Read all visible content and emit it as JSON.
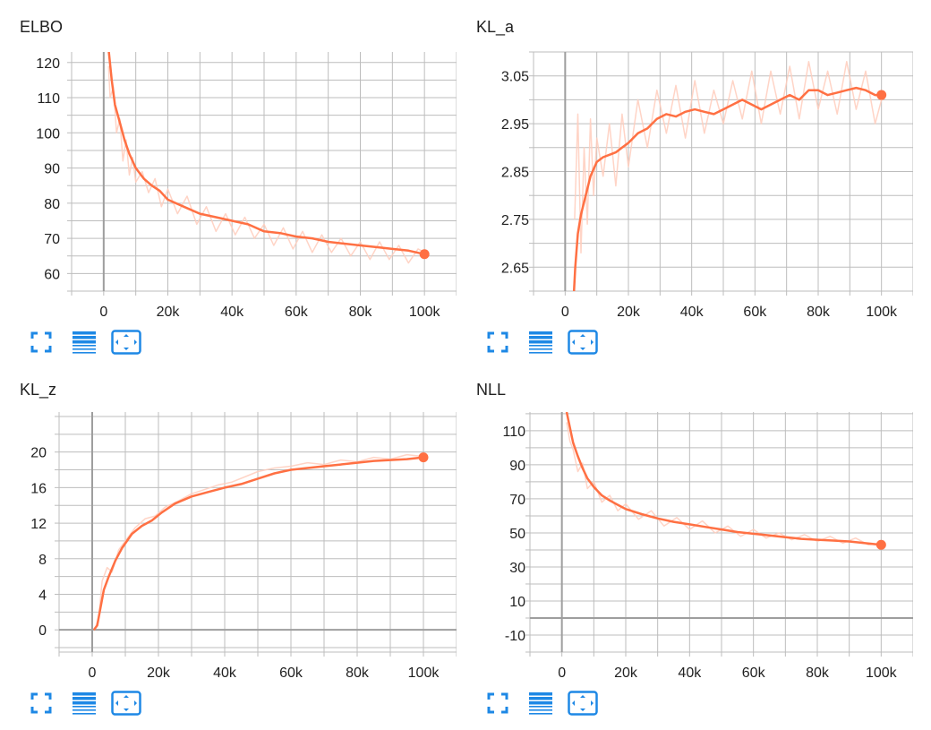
{
  "colors": {
    "smoothed": "#ff7043",
    "raw": "#ffccbc",
    "grid": "#bdbdbd",
    "axis_zero": "#9e9e9e",
    "toolbar_icon": "#1e88e5"
  },
  "toolbar": {
    "icons": [
      "fullscreen-icon",
      "data-table-icon",
      "fit-domain-icon"
    ]
  },
  "chart_data": [
    {
      "type": "line",
      "title": "ELBO",
      "xlabel": "",
      "ylabel": "",
      "xlim": [
        -10000,
        110000
      ],
      "ylim": [
        55,
        123
      ],
      "xticks": [
        0,
        20000,
        40000,
        60000,
        80000,
        100000
      ],
      "xtick_labels": [
        "0",
        "20k",
        "40k",
        "60k",
        "80k",
        "100k"
      ],
      "yticks": [
        60,
        70,
        80,
        90,
        100,
        110,
        120
      ],
      "ytick_labels": [
        "60",
        "70",
        "80",
        "90",
        "100",
        "110",
        "120"
      ],
      "grid": true,
      "series": [
        {
          "role": "smoothed",
          "x": [
            1500,
            2500,
            3500,
            5000,
            6500,
            8000,
            10000,
            12500,
            15000,
            17500,
            20000,
            25000,
            30000,
            35000,
            40000,
            45000,
            50000,
            55000,
            60000,
            65000,
            70000,
            75000,
            80000,
            85000,
            90000,
            95000,
            100000
          ],
          "y": [
            124,
            115,
            108,
            103,
            98,
            94,
            90,
            87,
            85,
            83.5,
            81,
            79,
            77,
            76,
            75,
            74,
            72,
            71.5,
            70.5,
            70,
            69,
            68.5,
            68,
            67.5,
            67,
            66.5,
            65.5
          ]
        },
        {
          "role": "raw",
          "x": [
            1500,
            2000,
            3000,
            4000,
            5000,
            6000,
            7000,
            8000,
            9000,
            10000,
            12000,
            14000,
            16000,
            18000,
            20000,
            23000,
            26000,
            29000,
            32000,
            35000,
            38000,
            41000,
            44000,
            47000,
            50000,
            53000,
            56000,
            59000,
            62000,
            65000,
            68000,
            71000,
            74000,
            77000,
            80000,
            83000,
            86000,
            89000,
            92000,
            95000,
            98000,
            100000
          ],
          "y": [
            119,
            110,
            113,
            100,
            104,
            92,
            98,
            88,
            93,
            86,
            89,
            83,
            87,
            79,
            84,
            77,
            82,
            74,
            79,
            72,
            77,
            71,
            76,
            70,
            74,
            68,
            73,
            67,
            72,
            66,
            71,
            66,
            70,
            65,
            69,
            64,
            69,
            64,
            68,
            63,
            67,
            66
          ]
        }
      ]
    },
    {
      "type": "line",
      "title": "KL_a",
      "xlabel": "",
      "ylabel": "",
      "xlim": [
        -10000,
        110000
      ],
      "ylim": [
        2.6,
        3.1
      ],
      "xticks": [
        0,
        20000,
        40000,
        60000,
        80000,
        100000
      ],
      "xtick_labels": [
        "0",
        "20k",
        "40k",
        "60k",
        "80k",
        "100k"
      ],
      "yticks": [
        2.65,
        2.75,
        2.85,
        2.95,
        3.05
      ],
      "ytick_labels": [
        "2.65",
        "2.75",
        "2.85",
        "2.95",
        "3.05"
      ],
      "grid": true,
      "series": [
        {
          "role": "smoothed",
          "x": [
            2800,
            3200,
            4000,
            5000,
            6500,
            8000,
            10000,
            12000,
            14000,
            16000,
            18000,
            20000,
            23000,
            26000,
            29000,
            32000,
            35000,
            38000,
            41000,
            44000,
            47000,
            50000,
            53000,
            56000,
            59000,
            62000,
            65000,
            68000,
            71000,
            74000,
            77000,
            80000,
            83000,
            86000,
            89000,
            92000,
            95000,
            98000,
            100000
          ],
          "y": [
            2.6,
            2.65,
            2.72,
            2.76,
            2.8,
            2.84,
            2.87,
            2.88,
            2.885,
            2.89,
            2.9,
            2.91,
            2.93,
            2.94,
            2.96,
            2.97,
            2.965,
            2.975,
            2.98,
            2.975,
            2.97,
            2.98,
            2.99,
            3.0,
            2.99,
            2.98,
            2.99,
            3.0,
            3.01,
            3.0,
            3.02,
            3.02,
            3.01,
            3.015,
            3.02,
            3.025,
            3.02,
            3.01,
            3.01
          ]
        },
        {
          "role": "raw",
          "x": [
            3000,
            4000,
            5000,
            6000,
            7000,
            8000,
            9000,
            10000,
            12000,
            14000,
            16000,
            18000,
            20000,
            23000,
            26000,
            29000,
            32000,
            35000,
            38000,
            41000,
            44000,
            47000,
            50000,
            53000,
            56000,
            59000,
            62000,
            65000,
            68000,
            71000,
            74000,
            77000,
            80000,
            83000,
            86000,
            89000,
            92000,
            95000,
            98000,
            100000
          ],
          "y": [
            2.75,
            2.97,
            2.68,
            2.9,
            2.74,
            2.96,
            2.8,
            2.92,
            2.84,
            2.95,
            2.82,
            2.97,
            2.86,
            3.0,
            2.9,
            3.02,
            2.93,
            3.03,
            2.92,
            3.04,
            2.93,
            3.02,
            2.95,
            3.04,
            2.96,
            3.06,
            2.95,
            3.06,
            2.97,
            3.07,
            2.96,
            3.08,
            2.98,
            3.06,
            2.97,
            3.08,
            2.98,
            3.06,
            2.95,
            3.0
          ]
        }
      ]
    },
    {
      "type": "line",
      "title": "KL_z",
      "xlabel": "",
      "ylabel": "",
      "xlim": [
        -10000,
        110000
      ],
      "ylim": [
        -2.5,
        24.5
      ],
      "xticks": [
        0,
        20000,
        40000,
        60000,
        80000,
        100000
      ],
      "xtick_labels": [
        "0",
        "20k",
        "40k",
        "60k",
        "80k",
        "100k"
      ],
      "yticks": [
        0,
        4,
        8,
        12,
        16,
        20
      ],
      "ytick_labels": [
        "0",
        "4",
        "8",
        "12",
        "16",
        "20"
      ],
      "grid": true,
      "series": [
        {
          "role": "smoothed",
          "x": [
            500,
            1500,
            2500,
            3500,
            5000,
            7000,
            9000,
            12000,
            15000,
            18000,
            21000,
            25000,
            30000,
            35000,
            40000,
            45000,
            50000,
            55000,
            60000,
            65000,
            70000,
            75000,
            80000,
            85000,
            90000,
            95000,
            100000
          ],
          "y": [
            0,
            0.5,
            2.5,
            4.5,
            6,
            7.8,
            9.2,
            10.8,
            11.7,
            12.3,
            13.2,
            14.2,
            15,
            15.5,
            16,
            16.4,
            17,
            17.6,
            18,
            18.2,
            18.4,
            18.6,
            18.8,
            19,
            19.1,
            19.2,
            19.4
          ]
        },
        {
          "role": "raw",
          "x": [
            1000,
            2000,
            3000,
            4500,
            6000,
            8000,
            10000,
            13000,
            16000,
            19000,
            22000,
            26000,
            30000,
            34000,
            38000,
            42000,
            46000,
            50000,
            55000,
            60000,
            65000,
            70000,
            75000,
            80000,
            85000,
            90000,
            95000,
            100000
          ],
          "y": [
            0.2,
            1.5,
            5.5,
            7,
            6.5,
            9,
            10,
            11.5,
            12.5,
            12.8,
            13.8,
            14.5,
            15.3,
            15.8,
            16.3,
            16.6,
            17.2,
            17.8,
            18.2,
            18.4,
            18.8,
            18.6,
            19.1,
            18.9,
            19.4,
            19.2,
            19.7,
            19.5
          ]
        }
      ]
    },
    {
      "type": "line",
      "title": "NLL",
      "xlabel": "",
      "ylabel": "",
      "xlim": [
        -10000,
        110000
      ],
      "ylim": [
        -20,
        121
      ],
      "xticks": [
        0,
        20000,
        40000,
        60000,
        80000,
        100000
      ],
      "xtick_labels": [
        "0",
        "20k",
        "40k",
        "60k",
        "80k",
        "100k"
      ],
      "yticks": [
        -10,
        10,
        30,
        50,
        70,
        90,
        110
      ],
      "ytick_labels": [
        "-10",
        "10",
        "30",
        "50",
        "70",
        "90",
        "110"
      ],
      "grid": true,
      "series": [
        {
          "role": "smoothed",
          "x": [
            1500,
            2500,
            3500,
            5000,
            6500,
            8000,
            10000,
            12500,
            15000,
            17500,
            20000,
            25000,
            30000,
            35000,
            40000,
            45000,
            50000,
            55000,
            60000,
            65000,
            70000,
            75000,
            80000,
            85000,
            90000,
            95000,
            100000
          ],
          "y": [
            121,
            112,
            103,
            95,
            88,
            82,
            77,
            72,
            69,
            66.5,
            64,
            61,
            58.5,
            56.5,
            55,
            53.5,
            52,
            50.5,
            49.5,
            48.5,
            47.5,
            46.5,
            46,
            45.5,
            45,
            44,
            43
          ]
        },
        {
          "role": "raw",
          "x": [
            1500,
            2500,
            3500,
            5000,
            6500,
            8000,
            10000,
            12500,
            15000,
            17500,
            20000,
            24000,
            28000,
            32000,
            36000,
            40000,
            44000,
            48000,
            52000,
            56000,
            60000,
            64000,
            68000,
            72000,
            76000,
            80000,
            84000,
            88000,
            92000,
            96000,
            100000
          ],
          "y": [
            115,
            104,
            99,
            86,
            91,
            76,
            80,
            68,
            72,
            63,
            67,
            58,
            63,
            54,
            59,
            52,
            57,
            50,
            54,
            48,
            52,
            47,
            50,
            46,
            49,
            45,
            48,
            44,
            47,
            43,
            44
          ]
        }
      ]
    }
  ]
}
